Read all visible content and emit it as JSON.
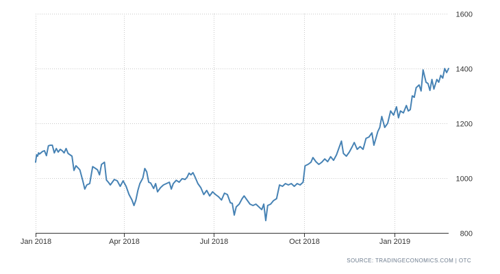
{
  "colors": {
    "line": "#4682b4",
    "grid": "#c8c8c8",
    "axis": "#333333",
    "background": "#ffffff"
  },
  "source_text": "SOURCE: TRADINGECONOMICS.COM | OTC",
  "chart_data": {
    "type": "line",
    "title": "",
    "xlabel": "",
    "ylabel": "",
    "ylim": [
      800,
      1600
    ],
    "xlim": [
      "2018-01-01",
      "2019-02-25"
    ],
    "y_axis_position": "right",
    "grid": true,
    "y_ticks": [
      800,
      1000,
      1200,
      1400,
      1600
    ],
    "x_ticks": [
      {
        "label": "Jan 2018",
        "date": "2018-01-01"
      },
      {
        "label": "Apr 2018",
        "date": "2018-04-01"
      },
      {
        "label": "Jul 2018",
        "date": "2018-07-01"
      },
      {
        "label": "Oct 2018",
        "date": "2018-10-01"
      },
      {
        "label": "Jan 2019",
        "date": "2019-01-01"
      }
    ],
    "series": [
      {
        "points": [
          [
            "2018-01-01",
            1058
          ],
          [
            "2018-01-02",
            1085
          ],
          [
            "2018-01-03",
            1080
          ],
          [
            "2018-01-04",
            1092
          ],
          [
            "2018-01-05",
            1088
          ],
          [
            "2018-01-08",
            1097
          ],
          [
            "2018-01-10",
            1100
          ],
          [
            "2018-01-12",
            1082
          ],
          [
            "2018-01-14",
            1118
          ],
          [
            "2018-01-16",
            1120
          ],
          [
            "2018-01-18",
            1120
          ],
          [
            "2018-01-20",
            1092
          ],
          [
            "2018-01-22",
            1108
          ],
          [
            "2018-01-24",
            1095
          ],
          [
            "2018-01-26",
            1105
          ],
          [
            "2018-01-28",
            1100
          ],
          [
            "2018-01-30",
            1092
          ],
          [
            "2018-02-01",
            1108
          ],
          [
            "2018-02-03",
            1090
          ],
          [
            "2018-02-05",
            1085
          ],
          [
            "2018-02-07",
            1080
          ],
          [
            "2018-02-09",
            1028
          ],
          [
            "2018-02-11",
            1045
          ],
          [
            "2018-02-13",
            1038
          ],
          [
            "2018-02-15",
            1030
          ],
          [
            "2018-02-18",
            990
          ],
          [
            "2018-02-20",
            960
          ],
          [
            "2018-02-22",
            975
          ],
          [
            "2018-02-25",
            980
          ],
          [
            "2018-02-28",
            1042
          ],
          [
            "2018-03-03",
            1035
          ],
          [
            "2018-03-05",
            1030
          ],
          [
            "2018-03-07",
            1012
          ],
          [
            "2018-03-09",
            1050
          ],
          [
            "2018-03-12",
            1058
          ],
          [
            "2018-03-14",
            993
          ],
          [
            "2018-03-16",
            985
          ],
          [
            "2018-03-18",
            975
          ],
          [
            "2018-03-20",
            985
          ],
          [
            "2018-03-22",
            995
          ],
          [
            "2018-03-25",
            990
          ],
          [
            "2018-03-28",
            970
          ],
          [
            "2018-03-31",
            990
          ],
          [
            "2018-04-03",
            970
          ],
          [
            "2018-04-06",
            940
          ],
          [
            "2018-04-09",
            920
          ],
          [
            "2018-04-11",
            900
          ],
          [
            "2018-04-13",
            920
          ],
          [
            "2018-04-15",
            955
          ],
          [
            "2018-04-17",
            980
          ],
          [
            "2018-04-20",
            1000
          ],
          [
            "2018-04-22",
            1035
          ],
          [
            "2018-04-24",
            1023
          ],
          [
            "2018-04-26",
            985
          ],
          [
            "2018-04-28",
            982
          ],
          [
            "2018-05-01",
            962
          ],
          [
            "2018-05-03",
            980
          ],
          [
            "2018-05-05",
            950
          ],
          [
            "2018-05-08",
            965
          ],
          [
            "2018-05-11",
            975
          ],
          [
            "2018-05-14",
            980
          ],
          [
            "2018-05-17",
            985
          ],
          [
            "2018-05-19",
            960
          ],
          [
            "2018-05-21",
            980
          ],
          [
            "2018-05-24",
            992
          ],
          [
            "2018-05-27",
            985
          ],
          [
            "2018-05-30",
            998
          ],
          [
            "2018-06-02",
            995
          ],
          [
            "2018-06-04",
            1003
          ],
          [
            "2018-06-06",
            1018
          ],
          [
            "2018-06-08",
            1012
          ],
          [
            "2018-06-10",
            1020
          ],
          [
            "2018-06-12",
            1005
          ],
          [
            "2018-06-15",
            980
          ],
          [
            "2018-06-18",
            965
          ],
          [
            "2018-06-21",
            940
          ],
          [
            "2018-06-24",
            955
          ],
          [
            "2018-06-27",
            935
          ],
          [
            "2018-06-30",
            950
          ],
          [
            "2018-07-03",
            940
          ],
          [
            "2018-07-06",
            932
          ],
          [
            "2018-07-09",
            920
          ],
          [
            "2018-07-12",
            945
          ],
          [
            "2018-07-15",
            940
          ],
          [
            "2018-07-18",
            910
          ],
          [
            "2018-07-20",
            908
          ],
          [
            "2018-07-22",
            865
          ],
          [
            "2018-07-24",
            895
          ],
          [
            "2018-07-27",
            905
          ],
          [
            "2018-07-30",
            925
          ],
          [
            "2018-08-01",
            935
          ],
          [
            "2018-08-04",
            920
          ],
          [
            "2018-08-07",
            905
          ],
          [
            "2018-08-10",
            900
          ],
          [
            "2018-08-13",
            905
          ],
          [
            "2018-08-16",
            895
          ],
          [
            "2018-08-19",
            885
          ],
          [
            "2018-08-21",
            905
          ],
          [
            "2018-08-23",
            845
          ],
          [
            "2018-08-25",
            900
          ],
          [
            "2018-08-28",
            905
          ],
          [
            "2018-08-31",
            918
          ],
          [
            "2018-09-03",
            925
          ],
          [
            "2018-09-06",
            975
          ],
          [
            "2018-09-09",
            970
          ],
          [
            "2018-09-12",
            980
          ],
          [
            "2018-09-15",
            975
          ],
          [
            "2018-09-18",
            980
          ],
          [
            "2018-09-21",
            970
          ],
          [
            "2018-09-24",
            980
          ],
          [
            "2018-09-27",
            975
          ],
          [
            "2018-09-30",
            985
          ],
          [
            "2018-10-02",
            1045
          ],
          [
            "2018-10-05",
            1050
          ],
          [
            "2018-10-08",
            1058
          ],
          [
            "2018-10-10",
            1075
          ],
          [
            "2018-10-13",
            1060
          ],
          [
            "2018-10-16",
            1050
          ],
          [
            "2018-10-19",
            1058
          ],
          [
            "2018-10-22",
            1070
          ],
          [
            "2018-10-25",
            1060
          ],
          [
            "2018-10-28",
            1078
          ],
          [
            "2018-10-31",
            1065
          ],
          [
            "2018-11-03",
            1085
          ],
          [
            "2018-11-06",
            1115
          ],
          [
            "2018-11-08",
            1135
          ],
          [
            "2018-11-10",
            1090
          ],
          [
            "2018-11-13",
            1080
          ],
          [
            "2018-11-16",
            1095
          ],
          [
            "2018-11-19",
            1115
          ],
          [
            "2018-11-21",
            1130
          ],
          [
            "2018-11-24",
            1105
          ],
          [
            "2018-11-27",
            1115
          ],
          [
            "2018-11-30",
            1105
          ],
          [
            "2018-12-03",
            1145
          ],
          [
            "2018-12-06",
            1150
          ],
          [
            "2018-12-09",
            1165
          ],
          [
            "2018-12-11",
            1120
          ],
          [
            "2018-12-13",
            1145
          ],
          [
            "2018-12-15",
            1170
          ],
          [
            "2018-12-17",
            1185
          ],
          [
            "2018-12-19",
            1225
          ],
          [
            "2018-12-22",
            1185
          ],
          [
            "2018-12-25",
            1200
          ],
          [
            "2018-12-28",
            1245
          ],
          [
            "2018-12-31",
            1230
          ],
          [
            "2019-01-03",
            1260
          ],
          [
            "2019-01-05",
            1220
          ],
          [
            "2019-01-07",
            1245
          ],
          [
            "2019-01-10",
            1238
          ],
          [
            "2019-01-13",
            1265
          ],
          [
            "2019-01-15",
            1245
          ],
          [
            "2019-01-17",
            1250
          ],
          [
            "2019-01-19",
            1300
          ],
          [
            "2019-01-21",
            1295
          ],
          [
            "2019-01-23",
            1330
          ],
          [
            "2019-01-26",
            1340
          ],
          [
            "2019-01-28",
            1318
          ],
          [
            "2019-01-30",
            1395
          ],
          [
            "2019-02-02",
            1350
          ],
          [
            "2019-02-04",
            1345
          ],
          [
            "2019-02-06",
            1320
          ],
          [
            "2019-02-08",
            1360
          ],
          [
            "2019-02-10",
            1325
          ],
          [
            "2019-02-13",
            1360
          ],
          [
            "2019-02-15",
            1350
          ],
          [
            "2019-02-17",
            1375
          ],
          [
            "2019-02-19",
            1365
          ],
          [
            "2019-02-21",
            1400
          ],
          [
            "2019-02-23",
            1385
          ],
          [
            "2019-02-25",
            1400
          ]
        ]
      }
    ]
  }
}
